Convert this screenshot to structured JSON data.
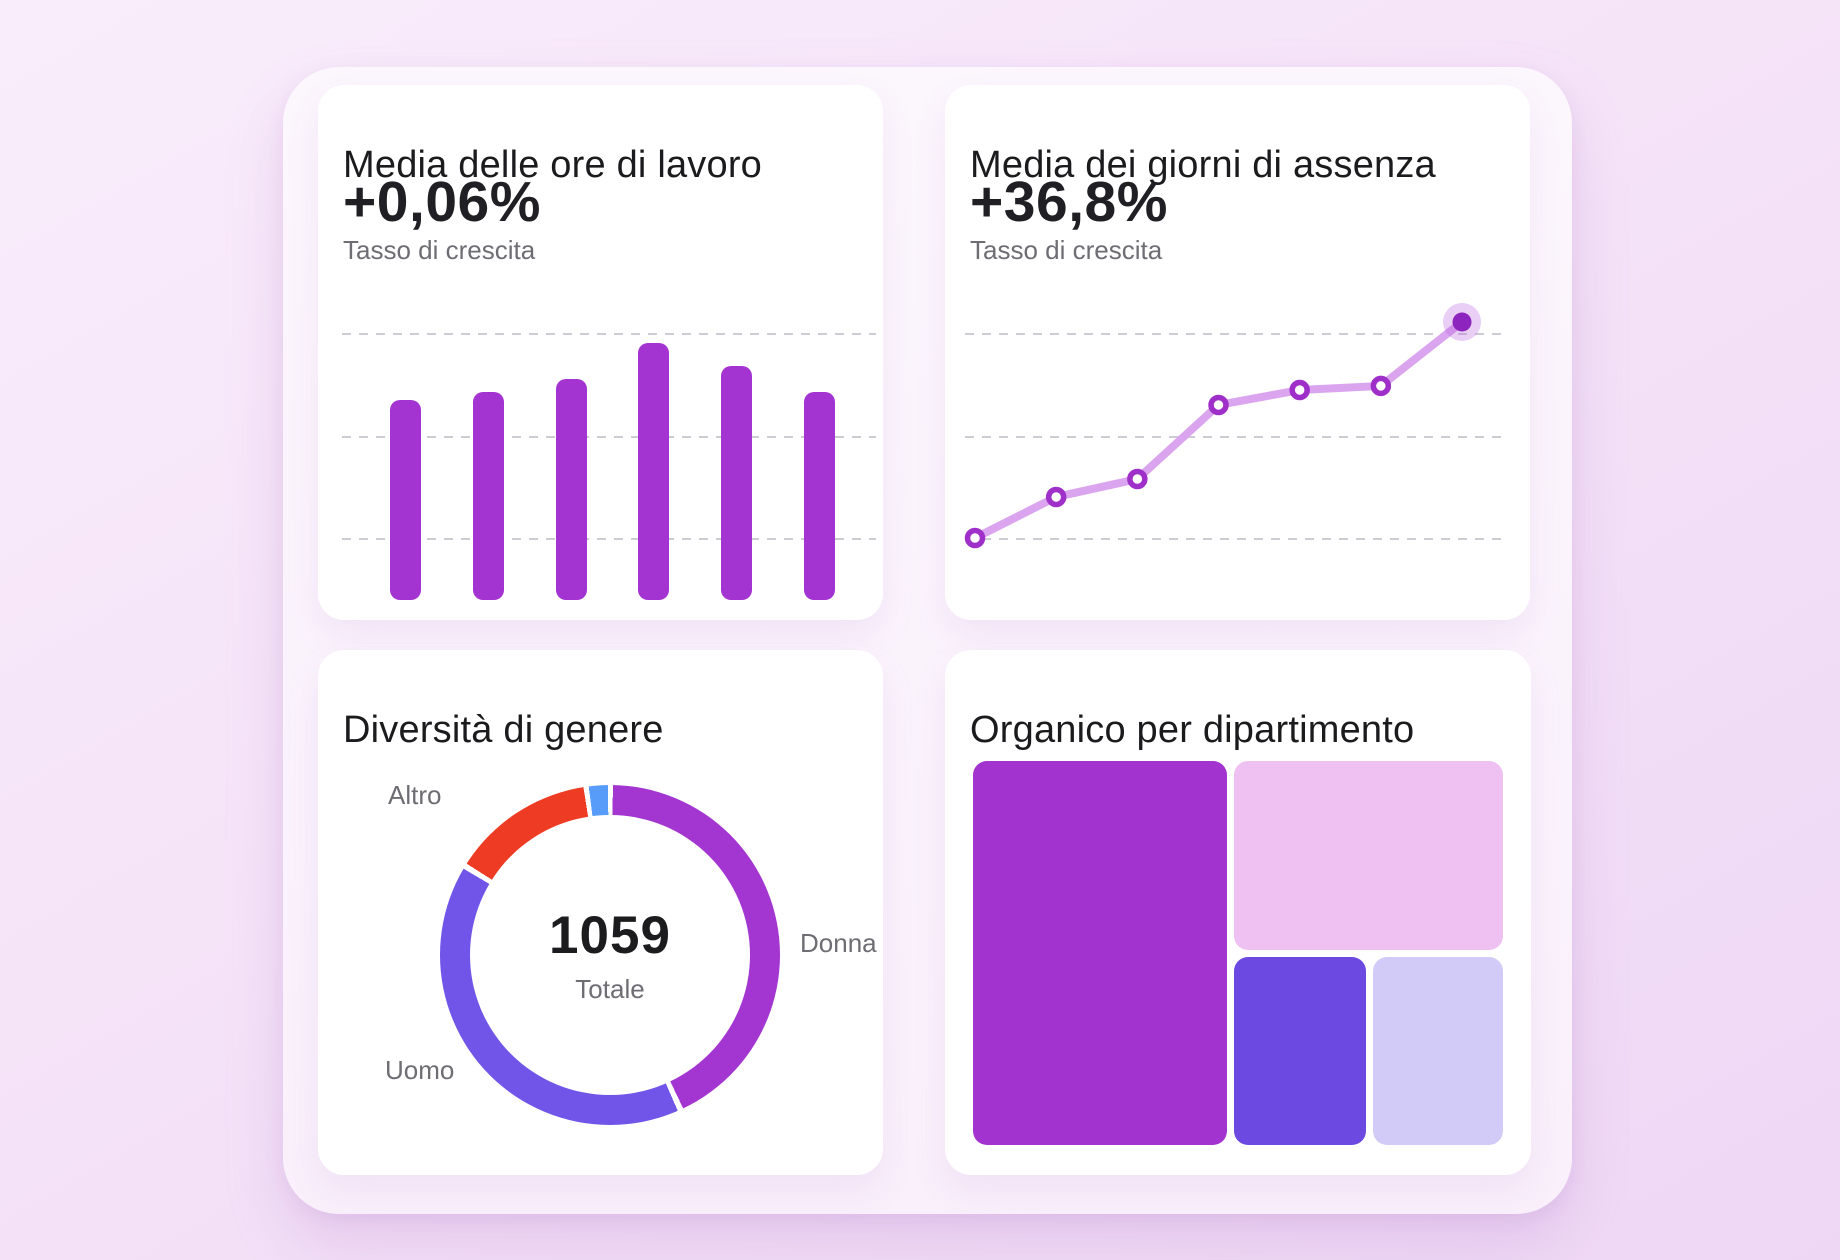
{
  "page": {
    "background_gradient": [
      "#F9EDFB",
      "#EED7F5"
    ],
    "panel_color": "#FBF4FC"
  },
  "cards": {
    "hours": {
      "title": "Media delle ore di lavoro",
      "value": "+0,06%",
      "subtitle": "Tasso di crescita"
    },
    "absence": {
      "title": "Media dei giorni di assenza",
      "value": "+36,8%",
      "subtitle": "Tasso di crescita"
    },
    "gender": {
      "title": "Diversità di genere",
      "total": "1059",
      "total_label": "Totale"
    },
    "departments": {
      "title": "Organico per dipartimento"
    }
  },
  "chart_data": [
    {
      "type": "bar",
      "title": "Media delle ore di lavoro",
      "growth_value": "+0,06%",
      "growth_label": "Tasso di crescita",
      "categories": [
        "",
        "",
        "",
        "",
        "",
        ""
      ],
      "values_pct_of_max": [
        78,
        81,
        86,
        100,
        91,
        81
      ],
      "bar_color": "#A334D2",
      "grid": "3 horizontal dashed lines, no axis tick labels",
      "legend": "none"
    },
    {
      "type": "line",
      "title": "Media dei giorni di assenza",
      "growth_value": "+36,8%",
      "growth_label": "Tasso di crescita",
      "x": [
        1,
        2,
        3,
        4,
        5,
        6,
        7
      ],
      "values_relative_0_100": [
        0,
        19,
        27.3,
        61.6,
        68.5,
        70.4,
        100
      ],
      "line_color": "#DBA4EF",
      "marker_ring_color": "#9F2FC9",
      "last_point_fill": "#8E24BE",
      "last_point_halo": "rgba(186,104,224,0.32)",
      "grid": "3 horizontal dashed lines, no axis tick labels; last point highlighted with halo",
      "legend": "none"
    },
    {
      "type": "pie",
      "title": "Diversità di genere",
      "center_total": "1059",
      "center_label": "Totale",
      "donut": true,
      "segments": [
        {
          "label": "Donna",
          "color": "#A335D1",
          "start_deg": 1,
          "end_deg": 154.5,
          "pct": 43
        },
        {
          "label": "Uomo",
          "color": "#7155E9",
          "start_deg": 156.5,
          "end_deg": 300.5,
          "pct": 40
        },
        {
          "label": "Altro",
          "color": "#EE3B23",
          "start_deg": 302.5,
          "end_deg": 351,
          "pct": 13
        },
        {
          "label": "",
          "color": "#569CF8",
          "start_deg": 352.8,
          "end_deg": 359.3,
          "pct": 2
        }
      ],
      "labels": [
        {
          "text": "Altro",
          "pos": "top-left"
        },
        {
          "text": "Donna",
          "pos": "right"
        },
        {
          "text": "Uomo",
          "pos": "bottom-left"
        }
      ],
      "legend": "labels placed around donut"
    },
    {
      "type": "heatmap",
      "subtype": "treemap",
      "title": "Organico per dipartimento",
      "blocks": [
        {
          "color": "#A233CF",
          "area_share_pct": 49,
          "x": 0,
          "y": 0,
          "w": 0.479,
          "h": 1
        },
        {
          "color": "#EFC1F3",
          "area_share_pct": 26,
          "x": 0.4925,
          "y": 0,
          "w": 0.5075,
          "h": 0.492
        },
        {
          "color": "#6C49E1",
          "area_share_pct": 12.5,
          "x": 0.4925,
          "y": 0.5104,
          "w": 0.249,
          "h": 0.4896
        },
        {
          "color": "#D3CBF7",
          "area_share_pct": 12.5,
          "x": 0.754,
          "y": 0.5104,
          "w": 0.246,
          "h": 0.4896
        }
      ],
      "legend": "none, unlabeled colored blocks"
    }
  ]
}
